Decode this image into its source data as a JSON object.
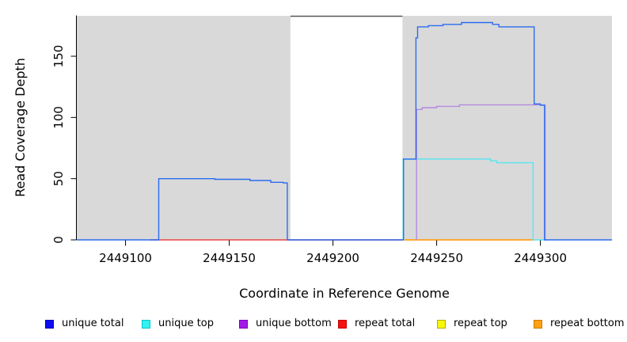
{
  "figure": {
    "x_axis_title": "Coordinate in Reference Genome",
    "y_axis_title": "Read Coverage Depth"
  },
  "legend": {
    "position": "bottom",
    "items": [
      {
        "label": "unique total",
        "fill": "#0d0df2",
        "border": "#0000bb"
      },
      {
        "label": "unique top",
        "fill": "#33f2f2",
        "border": "#00c4cc"
      },
      {
        "label": "unique bottom",
        "fill": "#a21ae8",
        "border": "#7d00bb"
      },
      {
        "label": "repeat total",
        "fill": "#f50f0f",
        "border": "#c40000"
      },
      {
        "label": "repeat top",
        "fill": "#f7f70a",
        "border": "#b0b000"
      },
      {
        "label": "repeat bottom",
        "fill": "#ffa114",
        "border": "#cc7a00"
      }
    ]
  },
  "chart_data": {
    "type": "line",
    "title": "",
    "xlabel": "Coordinate in Reference Genome",
    "ylabel": "Read Coverage Depth",
    "x_domain": [
      2449076.5,
      2449334.5
    ],
    "y_domain": [
      0,
      183
    ],
    "x_ticks": [
      2449100,
      2449150,
      2449200,
      2449250,
      2449300
    ],
    "y_ticks": [
      0,
      50,
      100,
      150
    ],
    "grid": false,
    "legend_position": "bottom",
    "plot_bg": "#ffffff",
    "shaded_regions": [
      {
        "x0": 2449076.5,
        "x1": 2449179.5,
        "color": "#d9d9d9"
      },
      {
        "x0": 2449233.5,
        "x1": 2449334.5,
        "color": "#d9d9d9"
      }
    ],
    "top_border_color": "#555555",
    "series": [
      {
        "name": "repeat total",
        "color": "#e84545",
        "points": [
          [
            2449112,
            0
          ],
          [
            2449233.5,
            0
          ]
        ]
      },
      {
        "name": "repeat top",
        "color": "#f5f000",
        "points": [
          [
            2449234,
            0
          ],
          [
            2449296,
            0
          ]
        ]
      },
      {
        "name": "repeat bottom",
        "color": "#ff9421",
        "points": [
          [
            2449234.5,
            0
          ],
          [
            2449296.8,
            0
          ]
        ]
      },
      {
        "name": "unique top",
        "color": "#55e6ee",
        "points": [
          [
            2449233.8,
            0
          ],
          [
            2449233.8,
            66
          ],
          [
            2449276,
            66
          ],
          [
            2449276,
            64.5
          ],
          [
            2449279,
            64.5
          ],
          [
            2449279,
            63
          ],
          [
            2449296.5,
            63
          ],
          [
            2449296.5,
            0
          ],
          [
            2449302,
            0
          ]
        ]
      },
      {
        "name": "unique bottom",
        "color": "#b48ae0",
        "points": [
          [
            2449240.3,
            0
          ],
          [
            2449240.3,
            106.5
          ],
          [
            2449243,
            106.5
          ],
          [
            2449243,
            108
          ],
          [
            2449250,
            108
          ],
          [
            2449250,
            109
          ],
          [
            2449261,
            109
          ],
          [
            2449261,
            110.3
          ],
          [
            2449302.3,
            110.3
          ],
          [
            2449302.3,
            0
          ],
          [
            2449303,
            0
          ]
        ]
      },
      {
        "name": "unique total",
        "color": "#2a6cf0",
        "points": [
          [
            2449076.5,
            0
          ],
          [
            2449116,
            0
          ],
          [
            2449116,
            50
          ],
          [
            2449143,
            50
          ],
          [
            2449143,
            49.5
          ],
          [
            2449160,
            49.5
          ],
          [
            2449160,
            48.5
          ],
          [
            2449170,
            48.5
          ],
          [
            2449170,
            47
          ],
          [
            2449176,
            47
          ],
          [
            2449176,
            46.5
          ],
          [
            2449178,
            46.5
          ],
          [
            2449178,
            0
          ],
          [
            2449234,
            0
          ],
          [
            2449234,
            66
          ],
          [
            2449240,
            66
          ],
          [
            2449240,
            165
          ],
          [
            2449240.8,
            165
          ],
          [
            2449240.8,
            174
          ],
          [
            2449246,
            174
          ],
          [
            2449246,
            175
          ],
          [
            2449253,
            175
          ],
          [
            2449253,
            176
          ],
          [
            2449262,
            176
          ],
          [
            2449262,
            177.5
          ],
          [
            2449277,
            177.5
          ],
          [
            2449277,
            176
          ],
          [
            2449280,
            176
          ],
          [
            2449280,
            174
          ],
          [
            2449297,
            174
          ],
          [
            2449297,
            111
          ],
          [
            2449300,
            111
          ],
          [
            2449300,
            110
          ],
          [
            2449302,
            110
          ],
          [
            2449302,
            0
          ],
          [
            2449334.5,
            0
          ]
        ]
      }
    ]
  }
}
